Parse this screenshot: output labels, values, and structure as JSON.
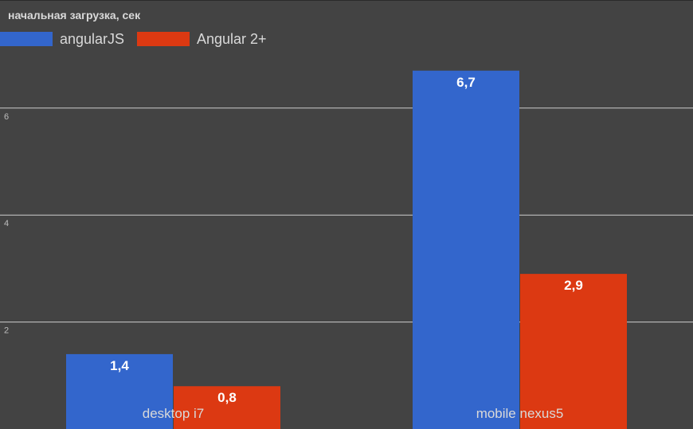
{
  "chart_data": {
    "type": "bar",
    "title": "начальная загрузка, сек",
    "categories": [
      "desktop i7",
      "mobile nexus5"
    ],
    "series": [
      {
        "name": "angularJS",
        "values": [
          1.4,
          6.7
        ],
        "labels": [
          "1,4",
          "6,7"
        ],
        "color": "#3366cc"
      },
      {
        "name": "Angular 2+",
        "values": [
          0.8,
          2.9
        ],
        "labels": [
          "0,8",
          "2,9"
        ],
        "color": "#dc3912"
      }
    ],
    "y_ticks": [
      2,
      4,
      6
    ],
    "ylim": [
      0,
      8
    ],
    "grid": true,
    "legend_position": "top-left",
    "xlabel": "",
    "ylabel": ""
  }
}
